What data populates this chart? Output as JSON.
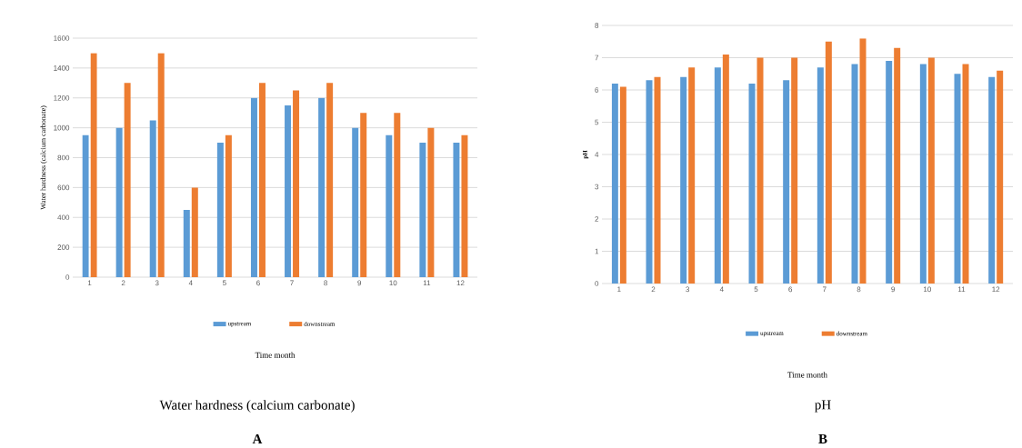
{
  "chart_data": [
    {
      "type": "bar",
      "categories": [
        "1",
        "2",
        "3",
        "4",
        "5",
        "6",
        "7",
        "8",
        "9",
        "10",
        "11",
        "12"
      ],
      "xlabel": "Time month",
      "ylabel": "Water hardness (calcium carbonate)",
      "ylim": [
        0,
        1600
      ],
      "yticks": [
        0,
        200,
        400,
        600,
        800,
        1000,
        1200,
        1400,
        1600
      ],
      "grid": "y",
      "legend": "bottom",
      "series": [
        {
          "name": "upstream",
          "color": "#5b9bd5",
          "values": [
            950,
            1000,
            1050,
            450,
            900,
            1200,
            1150,
            1200,
            1000,
            950,
            900,
            900
          ]
        },
        {
          "name": "downstream",
          "color": "#ed7d31",
          "values": [
            1500,
            1300,
            1500,
            600,
            950,
            1300,
            1250,
            1300,
            1100,
            1100,
            1000,
            950
          ]
        }
      ],
      "annotations": [
        "Water hardness (calcium carbonate)",
        "A"
      ]
    },
    {
      "type": "bar",
      "categories": [
        "1",
        "2",
        "3",
        "4",
        "5",
        "6",
        "7",
        "8",
        "9",
        "10",
        "11",
        "12"
      ],
      "xlabel": "Time month",
      "ylabel": "pH",
      "ylim": [
        0,
        8
      ],
      "yticks": [
        0,
        1,
        2,
        3,
        4,
        5,
        6,
        7,
        8
      ],
      "grid": "y",
      "legend": "bottom",
      "series": [
        {
          "name": "upstream",
          "color": "#5b9bd5",
          "values": [
            6.2,
            6.3,
            6.4,
            6.7,
            6.2,
            6.3,
            6.7,
            6.8,
            6.9,
            6.8,
            6.5,
            6.4
          ]
        },
        {
          "name": "downstream",
          "color": "#ed7d31",
          "values": [
            6.1,
            6.4,
            6.7,
            7.1,
            7.0,
            7.0,
            7.5,
            7.6,
            7.3,
            7.0,
            6.8,
            6.6
          ]
        }
      ],
      "annotations": [
        "pH",
        "B"
      ]
    }
  ]
}
